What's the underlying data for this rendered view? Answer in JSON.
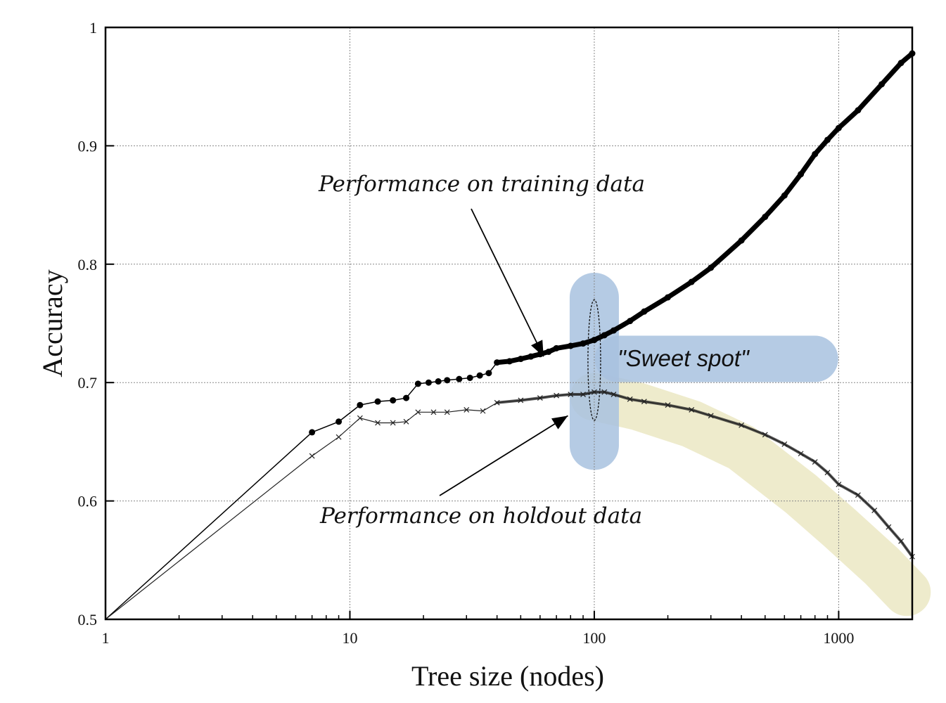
{
  "chart_data": {
    "type": "line",
    "xlabel": "Tree size (nodes)",
    "ylabel": "Accuracy",
    "x_scale": "log",
    "xlim": [
      1,
      2000
    ],
    "ylim": [
      0.5,
      1.0
    ],
    "x_ticks": [
      {
        "value": 1,
        "label": "1"
      },
      {
        "value": 10,
        "label": "10"
      },
      {
        "value": 100,
        "label": "100"
      },
      {
        "value": 1000,
        "label": "1000"
      }
    ],
    "y_ticks": [
      {
        "value": 0.5,
        "label": "0.5"
      },
      {
        "value": 0.6,
        "label": "0.6"
      },
      {
        "value": 0.7,
        "label": "0.7"
      },
      {
        "value": 0.8,
        "label": "0.8"
      },
      {
        "value": 0.9,
        "label": "0.9"
      },
      {
        "value": 1.0,
        "label": "1"
      }
    ],
    "grid": true,
    "series": [
      {
        "key": "training",
        "marker": "dot",
        "color": "#000000",
        "points": [
          [
            1,
            0.5
          ],
          [
            7,
            0.658
          ],
          [
            9,
            0.667
          ],
          [
            11,
            0.681
          ],
          [
            13,
            0.684
          ],
          [
            15,
            0.685
          ],
          [
            17,
            0.687
          ],
          [
            19,
            0.699
          ],
          [
            21,
            0.7
          ],
          [
            23,
            0.701
          ],
          [
            25,
            0.702
          ],
          [
            28,
            0.703
          ],
          [
            31,
            0.704
          ],
          [
            34,
            0.706
          ],
          [
            37,
            0.708
          ],
          [
            40,
            0.717
          ],
          [
            45,
            0.718
          ],
          [
            50,
            0.72
          ],
          [
            55,
            0.722
          ],
          [
            60,
            0.724
          ],
          [
            65,
            0.726
          ],
          [
            70,
            0.729
          ],
          [
            80,
            0.731
          ],
          [
            90,
            0.733
          ],
          [
            100,
            0.736
          ],
          [
            110,
            0.74
          ],
          [
            120,
            0.744
          ],
          [
            140,
            0.752
          ],
          [
            160,
            0.76
          ],
          [
            200,
            0.772
          ],
          [
            250,
            0.785
          ],
          [
            300,
            0.797
          ],
          [
            400,
            0.82
          ],
          [
            500,
            0.84
          ],
          [
            600,
            0.858
          ],
          [
            700,
            0.876
          ],
          [
            800,
            0.893
          ],
          [
            900,
            0.905
          ],
          [
            1000,
            0.915
          ],
          [
            1200,
            0.93
          ],
          [
            1500,
            0.952
          ],
          [
            1800,
            0.97
          ],
          [
            2000,
            0.978
          ]
        ]
      },
      {
        "key": "holdout",
        "marker": "x",
        "color": "#222222",
        "points": [
          [
            1,
            0.5
          ],
          [
            7,
            0.638
          ],
          [
            9,
            0.654
          ],
          [
            11,
            0.67
          ],
          [
            13,
            0.666
          ],
          [
            15,
            0.666
          ],
          [
            17,
            0.667
          ],
          [
            19,
            0.675
          ],
          [
            22,
            0.675
          ],
          [
            25,
            0.675
          ],
          [
            30,
            0.677
          ],
          [
            35,
            0.676
          ],
          [
            40,
            0.683
          ],
          [
            50,
            0.685
          ],
          [
            60,
            0.687
          ],
          [
            70,
            0.689
          ],
          [
            80,
            0.69
          ],
          [
            90,
            0.69
          ],
          [
            100,
            0.692
          ],
          [
            110,
            0.692
          ],
          [
            120,
            0.69
          ],
          [
            140,
            0.686
          ],
          [
            160,
            0.684
          ],
          [
            200,
            0.681
          ],
          [
            250,
            0.677
          ],
          [
            300,
            0.672
          ],
          [
            400,
            0.664
          ],
          [
            500,
            0.656
          ],
          [
            600,
            0.648
          ],
          [
            700,
            0.64
          ],
          [
            800,
            0.633
          ],
          [
            900,
            0.624
          ],
          [
            1000,
            0.614
          ],
          [
            1200,
            0.605
          ],
          [
            1400,
            0.592
          ],
          [
            1600,
            0.578
          ],
          [
            1800,
            0.566
          ],
          [
            2000,
            0.553
          ]
        ]
      }
    ],
    "annotations": [
      {
        "key": "training_label",
        "text": "Performance on training data"
      },
      {
        "key": "holdout_label",
        "text": "Performance on holdout data"
      },
      {
        "key": "sweet_spot",
        "text": "\"Sweet spot\""
      }
    ],
    "highlight_colors": {
      "sweet_spot": "#a9c2e0",
      "holdout_band": "#ece9c6"
    }
  }
}
